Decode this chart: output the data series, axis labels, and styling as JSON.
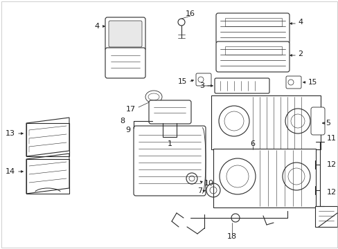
{
  "background_color": "#ffffff",
  "line_color": "#2a2a2a",
  "label_color": "#1a1a1a",
  "fig_width": 4.89,
  "fig_height": 3.6,
  "dpi": 100
}
